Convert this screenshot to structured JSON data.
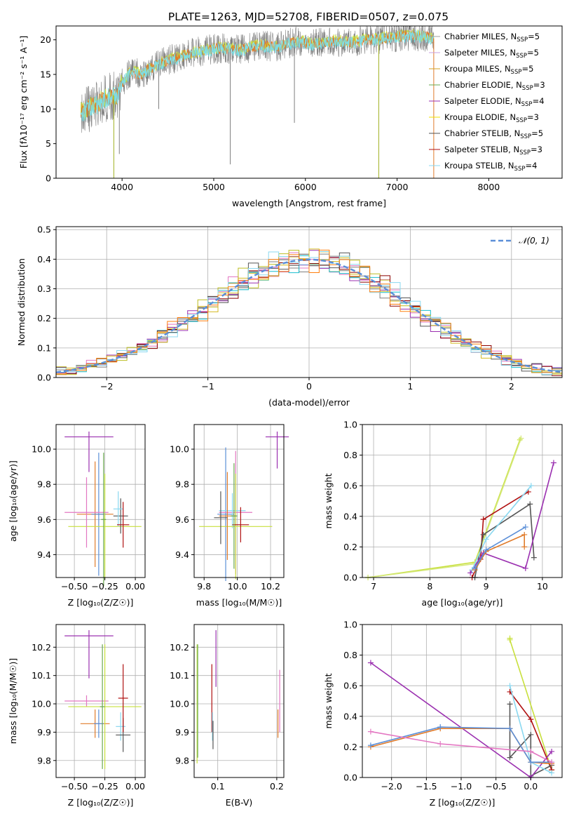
{
  "figure": {
    "title": "PLATE=1263, MJD=52708, FIBERID=0507, z=0.075"
  },
  "colors": {
    "spec_gray": "#808080",
    "lime": "#c8e03c",
    "orange": "#e07b2a",
    "cyan": "#7fdde3",
    "legend": [
      "#a0a0a0",
      "#c8a0e0",
      "#d4a020",
      "#6aa84f",
      "#9b30b0",
      "#f0e000",
      "#505050",
      "#b01010",
      "#8ad8f0"
    ],
    "hist": [
      "#e377c2",
      "#7f7f7f",
      "#bcbd22",
      "#17becf",
      "#9b30b0",
      "#8b0000",
      "#555555",
      "#d4ba20",
      "#8ad8f0",
      "#ff7f0e"
    ],
    "normal_curve": "#5b8fd8",
    "weights": [
      "#c8e03c",
      "#b01010",
      "#555555",
      "#9b30b0",
      "#8ad8f0",
      "#e07b2a",
      "#5b8fd8",
      "#e377c2"
    ]
  },
  "chart_data": [
    {
      "type": "line",
      "id": "spectrum",
      "xlabel": "wavelength [Angstrom, rest frame]",
      "ylabel": "Flux [fλ10⁻¹⁷ erg cm⁻² s⁻¹ A⁻¹]",
      "xlim": [
        3280,
        8800
      ],
      "ylim": [
        0,
        22
      ],
      "xticks": [
        4000,
        5000,
        6000,
        7000,
        8000
      ],
      "yticks": [
        0,
        5,
        10,
        15,
        20
      ],
      "grid": false,
      "envelope": {
        "x": [
          3550,
          3700,
          3850,
          3950,
          4000,
          4100,
          4200,
          4300,
          4400,
          4500,
          4700,
          4900,
          5100,
          5300,
          5500,
          5700,
          5900,
          6100,
          6300,
          6500,
          6700,
          6900,
          7100,
          7300,
          7400
        ],
        "y": [
          9.5,
          10.5,
          11.8,
          12.0,
          13.8,
          15.5,
          15.0,
          15.8,
          16.5,
          17.0,
          17.8,
          18.5,
          18.8,
          18.6,
          19.2,
          19.0,
          19.8,
          19.4,
          19.8,
          19.6,
          20.0,
          20.3,
          20.6,
          20.5,
          20.2
        ]
      },
      "absorption_lines": [
        {
          "x": 3910,
          "y": 0
        },
        {
          "x": 3970,
          "y": 3.5
        },
        {
          "x": 4400,
          "y": 10
        },
        {
          "x": 5180,
          "y": 2
        },
        {
          "x": 5880,
          "y": 8
        },
        {
          "x": 6800,
          "y": 0
        },
        {
          "x": 7400,
          "y": 0
        }
      ],
      "legend_position": "right",
      "legend": [
        {
          "label": "Chabrier MILES, N",
          "sub": "SSP",
          "value": "=5"
        },
        {
          "label": "Salpeter MILES, N",
          "sub": "SSP",
          "value": "=5"
        },
        {
          "label": "Kroupa MILES, N",
          "sub": "SSP",
          "value": "=5"
        },
        {
          "label": "Chabrier ELODIE, N",
          "sub": "SSP",
          "value": "=3"
        },
        {
          "label": "Salpeter ELODIE, N",
          "sub": "SSP",
          "value": "=4"
        },
        {
          "label": "Kroupa ELODIE, N",
          "sub": "SSP",
          "value": "=3"
        },
        {
          "label": "Chabrier STELIB, N",
          "sub": "SSP",
          "value": "=5"
        },
        {
          "label": "Salpeter STELIB, N",
          "sub": "SSP",
          "value": "=3"
        },
        {
          "label": "Kroupa STELIB, N",
          "sub": "SSP",
          "value": "=4"
        }
      ]
    },
    {
      "type": "line",
      "id": "residuals",
      "xlabel": "(data-model)/error",
      "ylabel": "Normed distribution",
      "xlim": [
        -2.5,
        2.5
      ],
      "ylim": [
        0,
        0.51
      ],
      "xticks": [
        -2,
        -1,
        0,
        1,
        2
      ],
      "yticks": [
        0.0,
        0.1,
        0.2,
        0.3,
        0.4,
        0.5
      ],
      "grid": true,
      "legend_position": "top-right",
      "legend": [
        "𝒩(0, 1)"
      ],
      "bin_width": 0.1
    },
    {
      "type": "scatter",
      "id": "age_vs_Z",
      "xlabel": "Z [log₁₀(Z/Z☉)]",
      "ylabel": "age  [log₁₀(age/yr)]",
      "xlim": [
        -0.65,
        0.08
      ],
      "ylim": [
        9.27,
        10.14
      ],
      "xticks": [
        -0.5,
        -0.25,
        0.0
      ],
      "yticks": [
        9.4,
        9.6,
        9.8,
        10.0
      ],
      "grid": true,
      "points": [
        {
          "x": -0.38,
          "y": 10.07,
          "xerr": 0.2,
          "yerr": [
            0.2,
            0.03
          ],
          "color": "#9b30b0"
        },
        {
          "x": -0.33,
          "y": 9.63,
          "xerr": 0.15,
          "yerr": 0.3,
          "color": "#e07b2a"
        },
        {
          "x": -0.3,
          "y": 9.63,
          "xerr": 0.06,
          "yerr": 0.35,
          "color": "#5b8fd8"
        },
        {
          "x": -0.25,
          "y": 9.56,
          "xerr": 0.3,
          "yerr": 0.3,
          "color": "#c8e03c"
        },
        {
          "x": -0.4,
          "y": 9.64,
          "xerr": 0.18,
          "yerr": 0.2,
          "color": "#e377c2"
        },
        {
          "x": -0.12,
          "y": 9.62,
          "xerr": 0.06,
          "yerr": 0.1,
          "color": "#555555"
        },
        {
          "x": -0.14,
          "y": 9.66,
          "xerr": 0.04,
          "yerr": 0.1,
          "color": "#8ad8f0"
        },
        {
          "x": -0.1,
          "y": 9.57,
          "xerr": 0.05,
          "yerr": 0.13,
          "color": "#b01010"
        },
        {
          "x": -0.26,
          "y": 9.6,
          "xerr": 0.02,
          "yerr": 0.38,
          "color": "#6aa84f"
        }
      ]
    },
    {
      "type": "scatter",
      "id": "age_vs_mass",
      "xlabel": "mass [log₁₀(M/M☉)]",
      "ylabel": "",
      "xlim": [
        9.74,
        10.28
      ],
      "ylim": [
        9.27,
        10.14
      ],
      "xticks": [
        9.8,
        10.0,
        10.2
      ],
      "yticks": [
        9.4,
        9.6,
        9.8,
        10.0
      ],
      "grid": true,
      "points": [
        {
          "x": 10.24,
          "y": 10.07,
          "xerr": 0.07,
          "yerr": [
            0.18,
            0.03
          ],
          "color": "#9b30b0"
        },
        {
          "x": 9.93,
          "y": 9.63,
          "xerr": 0.05,
          "yerr": 0.38,
          "color": "#5b8fd8"
        },
        {
          "x": 9.99,
          "y": 9.64,
          "xerr": 0.1,
          "yerr": 0.35,
          "color": "#e377c2"
        },
        {
          "x": 9.97,
          "y": 9.65,
          "xerr": 0.08,
          "yerr": 0.1,
          "color": "#8ad8f0"
        },
        {
          "x": 9.99,
          "y": 9.56,
          "xerr": 0.22,
          "yerr": 0.3,
          "color": "#c8e03c"
        },
        {
          "x": 9.94,
          "y": 9.62,
          "xerr": 0.05,
          "yerr": 0.25,
          "color": "#e07b2a"
        },
        {
          "x": 10.02,
          "y": 9.57,
          "xerr": 0.05,
          "yerr": 0.1,
          "color": "#b01010"
        },
        {
          "x": 9.9,
          "y": 9.61,
          "xerr": 0.04,
          "yerr": 0.15,
          "color": "#555555"
        },
        {
          "x": 9.98,
          "y": 9.62,
          "xerr": 0.02,
          "yerr": 0.3,
          "color": "#6aa84f"
        }
      ]
    },
    {
      "type": "line",
      "id": "weight_vs_age",
      "xlabel": "age  [log₁₀(age/yr)]",
      "ylabel": "mass weight",
      "xlim": [
        6.8,
        10.35
      ],
      "ylim": [
        0,
        1.0
      ],
      "xticks": [
        7,
        8,
        9,
        10
      ],
      "yticks": [
        0.0,
        0.2,
        0.4,
        0.6,
        0.8,
        1.0
      ],
      "grid": true,
      "series": [
        {
          "x": [
            6.9,
            8.8,
            9.6
          ],
          "y": [
            0.0,
            0.1,
            0.9
          ],
          "color": "#c8e03c"
        },
        {
          "x": [
            6.9,
            8.8,
            9.62
          ],
          "y": [
            0.0,
            0.09,
            0.91
          ],
          "color": "#d4e878"
        },
        {
          "x": [
            8.75,
            8.9,
            8.95,
            9.75
          ],
          "y": [
            0.0,
            0.12,
            0.38,
            0.56
          ],
          "color": "#b01010"
        },
        {
          "x": [
            8.8,
            8.95,
            9.78,
            9.85
          ],
          "y": [
            0.0,
            0.28,
            0.48,
            0.13
          ],
          "color": "#555555"
        },
        {
          "x": [
            8.72,
            8.95,
            9.7,
            10.2
          ],
          "y": [
            0.03,
            0.16,
            0.06,
            0.75
          ],
          "color": "#9b30b0"
        },
        {
          "x": [
            8.75,
            9.0,
            9.8
          ],
          "y": [
            0.05,
            0.25,
            0.6
          ],
          "color": "#8ad8f0"
        },
        {
          "x": [
            8.8,
            9.0,
            9.68,
            9.68
          ],
          "y": [
            0.05,
            0.17,
            0.28,
            0.2
          ],
          "color": "#e07b2a"
        },
        {
          "x": [
            8.8,
            9.0,
            9.7
          ],
          "y": [
            0.06,
            0.18,
            0.33
          ],
          "color": "#5b8fd8"
        }
      ]
    },
    {
      "type": "scatter",
      "id": "mass_vs_Z",
      "xlabel": "Z [log₁₀(Z/Z☉)]",
      "ylabel": "mass [log₁₀(M/M☉)]",
      "xlim": [
        -0.65,
        0.08
      ],
      "ylim": [
        9.74,
        10.28
      ],
      "xticks": [
        -0.5,
        -0.25,
        0.0
      ],
      "yticks": [
        9.8,
        9.9,
        10.0,
        10.1,
        10.2
      ],
      "grid": true,
      "points": [
        {
          "x": -0.38,
          "y": 10.24,
          "xerr": 0.2,
          "yerr": [
            0.15,
            0.02
          ],
          "color": "#9b30b0"
        },
        {
          "x": -0.4,
          "y": 10.01,
          "xerr": 0.18,
          "yerr": 0.02,
          "color": "#e377c2"
        },
        {
          "x": -0.33,
          "y": 9.93,
          "xerr": 0.12,
          "yerr": 0.05,
          "color": "#e07b2a"
        },
        {
          "x": -0.3,
          "y": 9.93,
          "xerr": 0.04,
          "yerr": 0.05,
          "color": "#5b8fd8"
        },
        {
          "x": -0.25,
          "y": 9.99,
          "xerr": 0.3,
          "yerr": 0.22,
          "color": "#c8e03c"
        },
        {
          "x": -0.27,
          "y": 9.99,
          "xerr": 0.02,
          "yerr": 0.22,
          "color": "#6aa84f"
        },
        {
          "x": -0.12,
          "y": 9.92,
          "xerr": 0.04,
          "yerr": 0.05,
          "color": "#8ad8f0"
        },
        {
          "x": -0.1,
          "y": 9.89,
          "xerr": 0.06,
          "yerr": 0.06,
          "color": "#555555"
        },
        {
          "x": -0.1,
          "y": 10.02,
          "xerr": 0.04,
          "yerr": 0.12,
          "color": "#b01010"
        }
      ]
    },
    {
      "type": "scatter",
      "id": "mass_vs_EBV",
      "xlabel": "E(B-V)",
      "ylabel": "",
      "xlim": [
        0.06,
        0.212
      ],
      "ylim": [
        9.74,
        10.28
      ],
      "xticks": [
        0.1,
        0.2
      ],
      "yticks": [
        9.8,
        9.9,
        10.0,
        10.1,
        10.2
      ],
      "grid": true,
      "points": [
        {
          "x": 0.065,
          "y": 10.0,
          "yerr": 0.21,
          "color": "#c8e03c"
        },
        {
          "x": 0.066,
          "y": 10.01,
          "yerr": 0.2,
          "color": "#6aa84f"
        },
        {
          "x": 0.097,
          "y": 10.24,
          "yerr": [
            0.18,
            0.02
          ],
          "color": "#9b30b0"
        },
        {
          "x": 0.09,
          "y": 10.02,
          "yerr": 0.12,
          "color": "#b01010"
        },
        {
          "x": 0.091,
          "y": 9.92,
          "yerr": 0.05,
          "color": "#8ad8f0"
        },
        {
          "x": 0.092,
          "y": 9.89,
          "yerr": 0.05,
          "color": "#555555"
        },
        {
          "x": 0.202,
          "y": 9.93,
          "yerr": 0.05,
          "color": "#e07b2a"
        },
        {
          "x": 0.205,
          "y": 10.01,
          "yerr": 0.11,
          "color": "#e377c2"
        }
      ]
    },
    {
      "type": "line",
      "id": "weight_vs_Z",
      "xlabel": "Z [log₁₀(Z/Z☉)]",
      "ylabel": "mass weight",
      "xlim": [
        -2.42,
        0.45
      ],
      "ylim": [
        0,
        1.0
      ],
      "xticks": [
        -2.0,
        -1.5,
        -1.0,
        -0.5,
        0.0
      ],
      "yticks": [
        0.0,
        0.2,
        0.4,
        0.6,
        0.8,
        1.0
      ],
      "grid": true,
      "series": [
        {
          "x": [
            -0.3,
            -0.3,
            0.3
          ],
          "y": [
            0.91,
            0.9,
            0.05
          ],
          "color": "#c8e03c"
        },
        {
          "x": [
            -0.3,
            0.0,
            0.3
          ],
          "y": [
            0.56,
            0.38,
            0.05
          ],
          "color": "#b01010"
        },
        {
          "x": [
            -0.3,
            -0.3,
            0.0,
            0.0,
            0.3
          ],
          "y": [
            0.48,
            0.13,
            0.28,
            0.01,
            0.08
          ],
          "color": "#555555"
        },
        {
          "x": [
            -2.3,
            0.0,
            0.3
          ],
          "y": [
            0.75,
            0.0,
            0.17
          ],
          "color": "#9b30b0"
        },
        {
          "x": [
            -0.3,
            0.0,
            0.3
          ],
          "y": [
            0.6,
            0.1,
            0.03
          ],
          "color": "#8ad8f0"
        },
        {
          "x": [
            -2.3,
            -1.3,
            -0.3,
            0.0,
            0.3
          ],
          "y": [
            0.2,
            0.32,
            0.32,
            0.1,
            0.09
          ],
          "color": "#e07b2a"
        },
        {
          "x": [
            -2.3,
            -1.3,
            -0.3,
            0.0,
            0.3
          ],
          "y": [
            0.21,
            0.33,
            0.32,
            0.1,
            0.1
          ],
          "color": "#5b8fd8"
        },
        {
          "x": [
            -2.3,
            -1.3,
            0.0,
            0.3
          ],
          "y": [
            0.3,
            0.22,
            0.17,
            0.1
          ],
          "color": "#e377c2"
        }
      ]
    }
  ]
}
